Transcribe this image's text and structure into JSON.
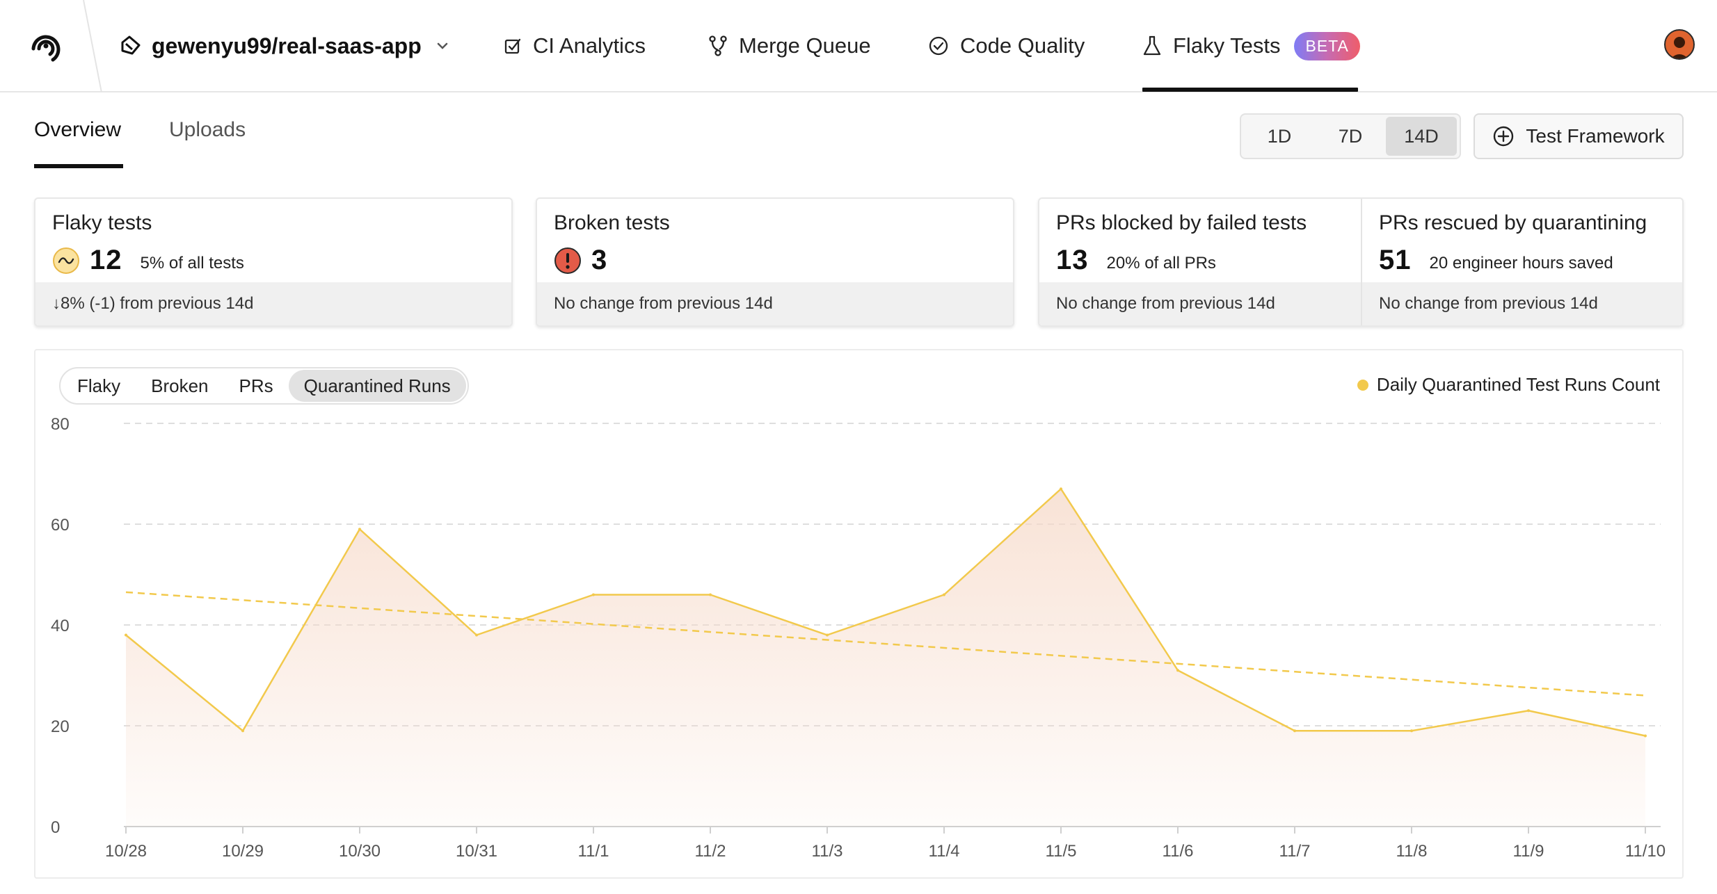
{
  "nav": {
    "repo": "gewenyu99/real-saas-app",
    "items": [
      {
        "label": "CI Analytics"
      },
      {
        "label": "Merge Queue"
      },
      {
        "label": "Code Quality"
      },
      {
        "label": "Flaky Tests",
        "badge": "BETA"
      }
    ]
  },
  "subtabs": {
    "overview": "Overview",
    "uploads": "Uploads"
  },
  "range": {
    "options": [
      "1D",
      "7D",
      "14D"
    ],
    "selected": "14D"
  },
  "framework_button": "Test Framework",
  "cards": {
    "flaky": {
      "title": "Flaky tests",
      "value": "12",
      "sub": "5% of all tests",
      "footer": "↓8% (-1) from previous 14d"
    },
    "broken": {
      "title": "Broken tests",
      "value": "3",
      "footer": "No change from previous 14d"
    },
    "blocked": {
      "title": "PRs blocked by failed tests",
      "value": "13",
      "sub": "20% of all PRs",
      "footer": "No change from previous 14d"
    },
    "rescued": {
      "title": "PRs rescued by quarantining",
      "value": "51",
      "sub": "20 engineer hours saved",
      "footer": "No change from previous 14d"
    }
  },
  "chart_tabs": {
    "options": [
      "Flaky",
      "Broken",
      "PRs",
      "Quarantined Runs"
    ],
    "selected": "Quarantined Runs"
  },
  "colors": {
    "line": "#f2c94c",
    "area_top": "#f6d9c8",
    "flaky_icon": "#fbe3a0",
    "broken_icon": "#e35b48"
  },
  "chart_data": {
    "type": "area",
    "categories": [
      "10/28",
      "10/29",
      "10/30",
      "10/31",
      "11/1",
      "11/2",
      "11/3",
      "11/4",
      "11/5",
      "11/6",
      "11/7",
      "11/8",
      "11/9",
      "11/10"
    ],
    "series": [
      {
        "name": "Daily Quarantined Test Runs Count",
        "values": [
          38,
          19,
          59,
          38,
          46,
          46,
          38,
          46,
          67,
          31,
          19,
          19,
          23,
          18
        ]
      }
    ],
    "trendline": {
      "start": 46.5,
      "end": 26
    },
    "yticks": [
      0,
      20,
      40,
      60,
      80
    ],
    "ylim": [
      0,
      80
    ],
    "grid": true,
    "legend": "top-right"
  }
}
